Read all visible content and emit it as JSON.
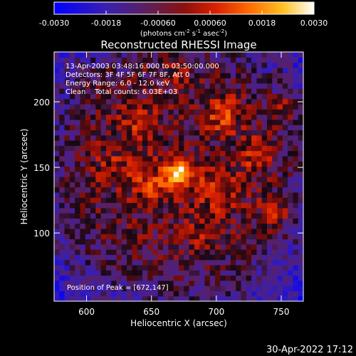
{
  "chart_data": {
    "type": "heatmap",
    "title": "Reconstructed RHESSI Image",
    "xlabel": "Heliocentric X (arcsec)",
    "ylabel": "Heliocentric Y (arcsec)",
    "xlim": [
      575,
      767
    ],
    "ylim": [
      48,
      238
    ],
    "xticks": [
      600,
      650,
      700,
      750
    ],
    "yticks": [
      100,
      150,
      200
    ],
    "colorbar": {
      "range": [
        -0.003,
        0.003
      ],
      "tick_values": [
        -0.003,
        -0.0018,
        -0.0006,
        0.0006,
        0.0018,
        0.003
      ],
      "tick_labels": [
        "-0.0030",
        "-0.0018",
        "-0.00060",
        "0.00060",
        "0.0018",
        "0.0030"
      ],
      "units_text": "(photons cm",
      "units_sup1": "-2",
      "units_mid": " s",
      "units_sup2": "-1",
      "units_end": " asec",
      "units_sup3": "-2",
      "units_close": ")",
      "colormap": "hot (black-blue-purple-red-orange-yellow-white)"
    },
    "peak": {
      "x": 672,
      "y": 147
    },
    "annotations": {
      "time_range": "13-Apr-2003 03:48:16.000 to 03:50:00.000",
      "detectors": "Detectors: 3F 4F 5F 6F 7F 8F, Att 0",
      "energy": "Energy Range: 6.0 - 12.0 keV",
      "clean": "Clean    Total counts: 6.03E+03",
      "peak_text": "Position of Peak = [672,147]"
    },
    "image_grid": {
      "nx": 48,
      "ny": 48
    },
    "bright_sources": [
      {
        "x": 672,
        "y": 147,
        "intensity": 0.003,
        "sigma": 7
      },
      {
        "x": 650,
        "y": 138,
        "intensity": 0.0012,
        "sigma": 12
      },
      {
        "x": 700,
        "y": 135,
        "intensity": 0.0011,
        "sigma": 12
      },
      {
        "x": 705,
        "y": 190,
        "intensity": 0.0013,
        "sigma": 10
      },
      {
        "x": 640,
        "y": 185,
        "intensity": 0.0009,
        "sigma": 10
      },
      {
        "x": 745,
        "y": 115,
        "intensity": 0.0012,
        "sigma": 8
      },
      {
        "x": 752,
        "y": 195,
        "intensity": 0.0011,
        "sigma": 8
      },
      {
        "x": 620,
        "y": 150,
        "intensity": 0.0007,
        "sigma": 10
      },
      {
        "x": 690,
        "y": 105,
        "intensity": 0.0007,
        "sigma": 10
      },
      {
        "x": 730,
        "y": 160,
        "intensity": 0.0009,
        "sigma": 10
      },
      {
        "x": 605,
        "y": 210,
        "intensity": 0.0006,
        "sigma": 8
      },
      {
        "x": 670,
        "y": 220,
        "intensity": 0.0006,
        "sigma": 8
      }
    ]
  },
  "footer": {
    "timestamp": "30-Apr-2022 17:12"
  }
}
